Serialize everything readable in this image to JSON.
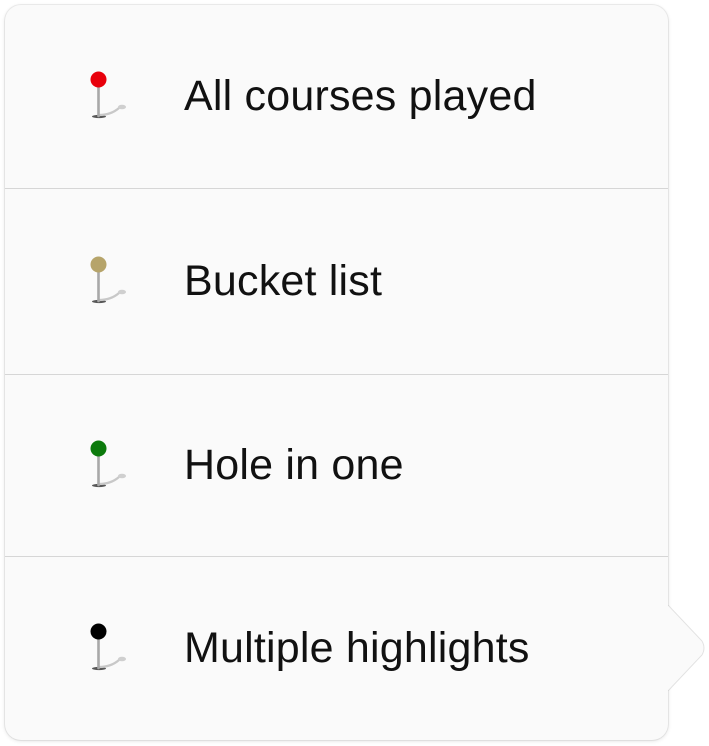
{
  "legend": {
    "items": [
      {
        "label": "All courses played",
        "pin_color": "#e8000b",
        "icon": "map-pin-icon"
      },
      {
        "label": "Bucket list",
        "pin_color": "#b6a46a",
        "icon": "map-pin-icon"
      },
      {
        "label": "Hole in one",
        "pin_color": "#0c7a0c",
        "icon": "map-pin-icon"
      },
      {
        "label": "Multiple highlights",
        "pin_color": "#000000",
        "icon": "map-pin-icon"
      }
    ]
  }
}
